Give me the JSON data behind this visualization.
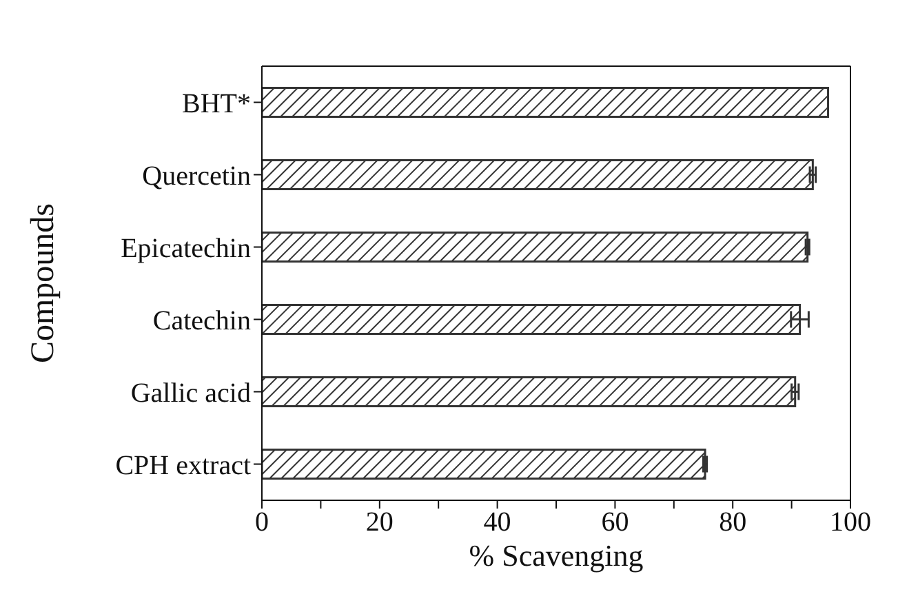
{
  "chart_data": {
    "type": "bar",
    "orientation": "horizontal",
    "xlabel": "% Scavenging",
    "ylabel": "Compounds",
    "categories": [
      "BHT*",
      "Quercetin",
      "Epicatechin",
      "Catechin",
      "Gallic acid",
      "CPH extract"
    ],
    "values": [
      96.2,
      93.6,
      92.7,
      91.4,
      90.6,
      75.3
    ],
    "errors": [
      null,
      0.5,
      0.3,
      1.5,
      0.6,
      0.3
    ],
    "color": "#333333",
    "xlim": [
      0,
      100
    ],
    "xticks": [
      0,
      {
        "value": 10,
        "label": null
      },
      20,
      {
        "value": 30,
        "label": null
      },
      40,
      {
        "value": 50,
        "label": null
      },
      60,
      {
        "value": 70,
        "label": null
      },
      80,
      {
        "value": 90,
        "label": null
      },
      100
    ],
    "grid": false,
    "legend": false
  }
}
